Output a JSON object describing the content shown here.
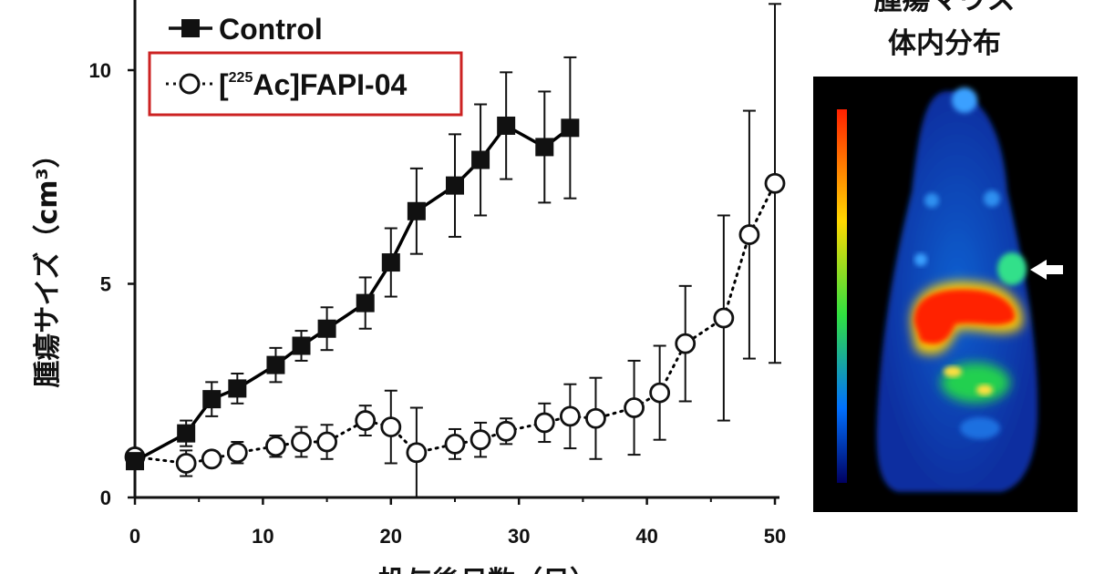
{
  "chart_data": {
    "type": "line",
    "xlabel": "投与後日数（日）",
    "ylabel": "腫瘍サイズ（cm³）",
    "xlim": [
      0,
      50
    ],
    "ylim": [
      0,
      11.5
    ],
    "x_ticks": [
      "0",
      "10",
      "20",
      "30",
      "40",
      "50"
    ],
    "y_ticks": [
      "0",
      "5",
      "10"
    ],
    "grid": false,
    "legend_position": "top-left",
    "series": [
      {
        "name": "Control",
        "marker": "filled-square",
        "line": "solid",
        "color": "#000000",
        "x": [
          0,
          4,
          6,
          8,
          11,
          13,
          15,
          18,
          20,
          22,
          25,
          27,
          29,
          32,
          34
        ],
        "y": [
          0.85,
          1.5,
          2.3,
          2.55,
          3.1,
          3.55,
          3.95,
          4.55,
          5.5,
          6.7,
          7.3,
          7.9,
          8.7,
          8.2,
          8.65
        ],
        "err": [
          0.1,
          0.3,
          0.4,
          0.35,
          0.4,
          0.35,
          0.5,
          0.6,
          0.8,
          1.0,
          1.2,
          1.3,
          1.25,
          1.3,
          1.65
        ]
      },
      {
        "name": "[²²⁵Ac]FAPI-04",
        "legend_parts": {
          "open": "[",
          "sup": "225",
          "rest": "Ac]FAPI-04"
        },
        "marker": "open-circle",
        "line": "dotted",
        "color": "#000000",
        "x": [
          0,
          4,
          6,
          8,
          11,
          13,
          15,
          18,
          20,
          22,
          25,
          27,
          29,
          32,
          34,
          36,
          39,
          41,
          43,
          46,
          48,
          50
        ],
        "y": [
          0.95,
          0.8,
          0.9,
          1.05,
          1.2,
          1.3,
          1.3,
          1.8,
          1.65,
          1.05,
          1.25,
          1.35,
          1.55,
          1.75,
          1.9,
          1.85,
          2.1,
          2.45,
          3.6,
          4.2,
          6.15,
          7.35
        ],
        "err": [
          0.1,
          0.3,
          0.15,
          0.25,
          0.25,
          0.35,
          0.4,
          0.35,
          0.85,
          1.05,
          0.35,
          0.4,
          0.3,
          0.45,
          0.75,
          0.95,
          1.1,
          1.1,
          1.35,
          2.4,
          2.9,
          4.2
        ]
      }
    ],
    "highlight_box_color": "#cc2222"
  },
  "inset": {
    "title_line1": "腫瘍マウス",
    "title_line2": "体内分布"
  }
}
